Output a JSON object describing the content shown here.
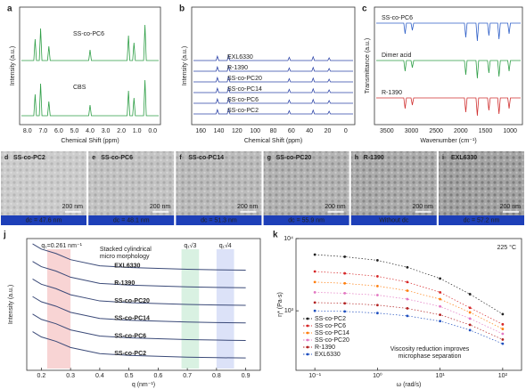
{
  "panels": {
    "a": {
      "label": "a",
      "ylabel": "Intensity (a.u.)",
      "xlabel": "Chemical Shift (ppm)",
      "xticks": [
        "8.0",
        "7.0",
        "6.0",
        "5.0",
        "4.0",
        "3.0",
        "2.0",
        "1.0",
        "0.0"
      ],
      "traces": [
        "SS-co-PC6",
        "CBS"
      ]
    },
    "b": {
      "label": "b",
      "ylabel": "Intensity (a.u.)",
      "xlabel": "Chemical Shift (ppm)",
      "xticks": [
        "160",
        "140",
        "120",
        "100",
        "80",
        "60",
        "40",
        "20",
        "0"
      ],
      "traces": [
        "EXL6330",
        "R-1390",
        "SS-co-PC20",
        "SS-co-PC14",
        "SS-co-PC6",
        "SS-co-PC2"
      ]
    },
    "c": {
      "label": "c",
      "ylabel": "Transmittance (a.u.)",
      "xlabel": "Wavenumber (cm⁻¹)",
      "xticks": [
        "3500",
        "3000",
        "2500",
        "2000",
        "1500",
        "1000"
      ],
      "traces": [
        "SS-co-PC6",
        "Dimer acid",
        "R-1390"
      ]
    }
  },
  "micrographs": [
    {
      "label": "d",
      "name": "SS-co-PC2",
      "scale": "200 nm",
      "caption": "dc = 47.6 nm"
    },
    {
      "label": "e",
      "name": "SS-co-PC6",
      "scale": "200 nm",
      "caption": "dc = 48.1 nm"
    },
    {
      "label": "f",
      "name": "SS-co-PC14",
      "scale": "200 nm",
      "caption": "dc = 51.3 nm"
    },
    {
      "label": "g",
      "name": "SS-co-PC20",
      "scale": "200 nm",
      "caption": "dc = 55.9 nm"
    },
    {
      "label": "h",
      "name": "R-1390",
      "scale": "200 nm",
      "caption": "Without dc"
    },
    {
      "label": "i",
      "name": "EXL6330",
      "scale": "200 nm",
      "caption": "dc = 57.2 nm"
    }
  ],
  "chart_data": [
    {
      "type": "line",
      "label": "j",
      "xlabel": "q (nm⁻¹)",
      "ylabel": "Intensity (a.u.)",
      "annotations": [
        "q₁=0.261 nm⁻¹",
        "Stacked cylindrical",
        "micro morphology",
        "q₁√3",
        "q₁√4"
      ],
      "x": [
        0.17,
        0.2,
        0.25,
        0.3,
        0.4,
        0.5,
        0.6,
        0.7,
        0.8,
        0.9
      ],
      "xlim": [
        0.15,
        0.95
      ],
      "xticks": [
        0.2,
        0.3,
        0.4,
        0.5,
        0.6,
        0.7,
        0.8,
        0.9
      ],
      "ylim": [
        0,
        7.5
      ],
      "series": [
        {
          "name": "EXL6330",
          "color": "#3b4a78",
          "values": [
            7.2,
            6.9,
            6.65,
            6.3,
            5.95,
            5.85,
            5.8,
            5.75,
            5.72,
            5.7
          ]
        },
        {
          "name": "R-1390",
          "color": "#3b4a78",
          "values": [
            6.2,
            5.9,
            5.65,
            5.3,
            4.95,
            4.85,
            4.8,
            4.75,
            4.72,
            4.7
          ]
        },
        {
          "name": "SS-co-PC20",
          "color": "#3b4a78",
          "values": [
            5.2,
            4.9,
            4.65,
            4.3,
            3.95,
            3.85,
            3.8,
            3.75,
            3.72,
            3.7
          ]
        },
        {
          "name": "SS-co-PC14",
          "color": "#3b4a78",
          "values": [
            4.2,
            3.9,
            3.65,
            3.3,
            2.95,
            2.85,
            2.8,
            2.75,
            2.72,
            2.7
          ]
        },
        {
          "name": "SS-co-PC6",
          "color": "#3b4a78",
          "values": [
            3.2,
            2.9,
            2.65,
            2.3,
            1.95,
            1.85,
            1.8,
            1.75,
            1.72,
            1.7
          ]
        },
        {
          "name": "SS-co-PC2",
          "color": "#3b4a78",
          "values": [
            2.2,
            1.9,
            1.65,
            1.3,
            0.95,
            0.85,
            0.8,
            0.75,
            0.72,
            0.7
          ]
        }
      ]
    },
    {
      "type": "scatter",
      "label": "k",
      "xlabel": "ω (rad/s)",
      "ylabel": "η* (Pa·s)",
      "log": true,
      "annotations": [
        "225 °C",
        "Viscosity reduction improves",
        "microphase separation"
      ],
      "x": [
        0.1,
        0.3,
        1,
        3,
        10,
        30,
        100
      ],
      "xlim": [
        0.05,
        200
      ],
      "xticks": [
        {
          "value": 0.1,
          "label": "10⁻¹"
        },
        {
          "value": 1,
          "label": "10⁰"
        },
        {
          "value": 10,
          "label": "10¹"
        },
        {
          "value": 100,
          "label": "10²"
        }
      ],
      "ylim": [
        150,
        10000
      ],
      "yticks": [
        {
          "value": 1000,
          "label": "10³"
        },
        {
          "value": 10000,
          "label": "10⁴"
        }
      ],
      "legend": "lower-left",
      "series": [
        {
          "name": "SS-co-PC2",
          "color": "#222222",
          "values": [
            6000,
            5600,
            5000,
            4000,
            2800,
            1700,
            900
          ]
        },
        {
          "name": "SS-co-PC6",
          "color": "#d62728",
          "values": [
            3500,
            3300,
            3000,
            2500,
            1800,
            1100,
            650
          ]
        },
        {
          "name": "SS-co-PC14",
          "color": "#ff7f0e",
          "values": [
            2500,
            2400,
            2200,
            1900,
            1450,
            950,
            560
          ]
        },
        {
          "name": "SS-co-PC20",
          "color": "#e377c2",
          "values": [
            1800,
            1750,
            1650,
            1450,
            1150,
            780,
            480
          ]
        },
        {
          "name": "R-1390",
          "color": "#b22222",
          "values": [
            1300,
            1270,
            1200,
            1080,
            880,
            640,
            400
          ]
        },
        {
          "name": "EXL6330",
          "color": "#1f4fbf",
          "values": [
            1000,
            980,
            930,
            850,
            720,
            540,
            350
          ]
        }
      ]
    }
  ]
}
